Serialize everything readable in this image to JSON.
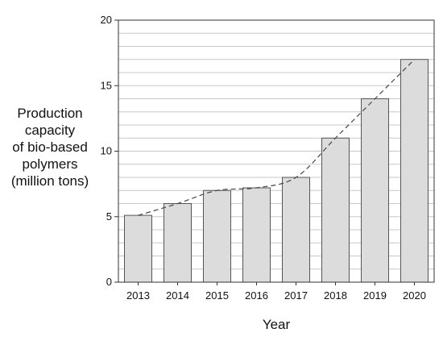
{
  "chart_data": {
    "type": "bar",
    "title": "",
    "xlabel": "Year",
    "ylabel_lines": [
      "Production",
      "capacity",
      "of bio-based",
      "polymers",
      "(million tons)"
    ],
    "categories": [
      "2013",
      "2014",
      "2015",
      "2016",
      "2017",
      "2018",
      "2019",
      "2020"
    ],
    "values": [
      5.1,
      6.0,
      7.0,
      7.2,
      8.0,
      11.0,
      14.0,
      17.0
    ],
    "ylim": [
      0,
      20
    ],
    "yticks": [
      0,
      5,
      10,
      15,
      20
    ],
    "grid": true,
    "trendline": "dashed",
    "colors": {
      "bar_fill": "#dcdcdc",
      "bar_stroke": "#555555",
      "grid": "#c8c8c8",
      "axis": "#333333",
      "trend": "#444444"
    }
  }
}
